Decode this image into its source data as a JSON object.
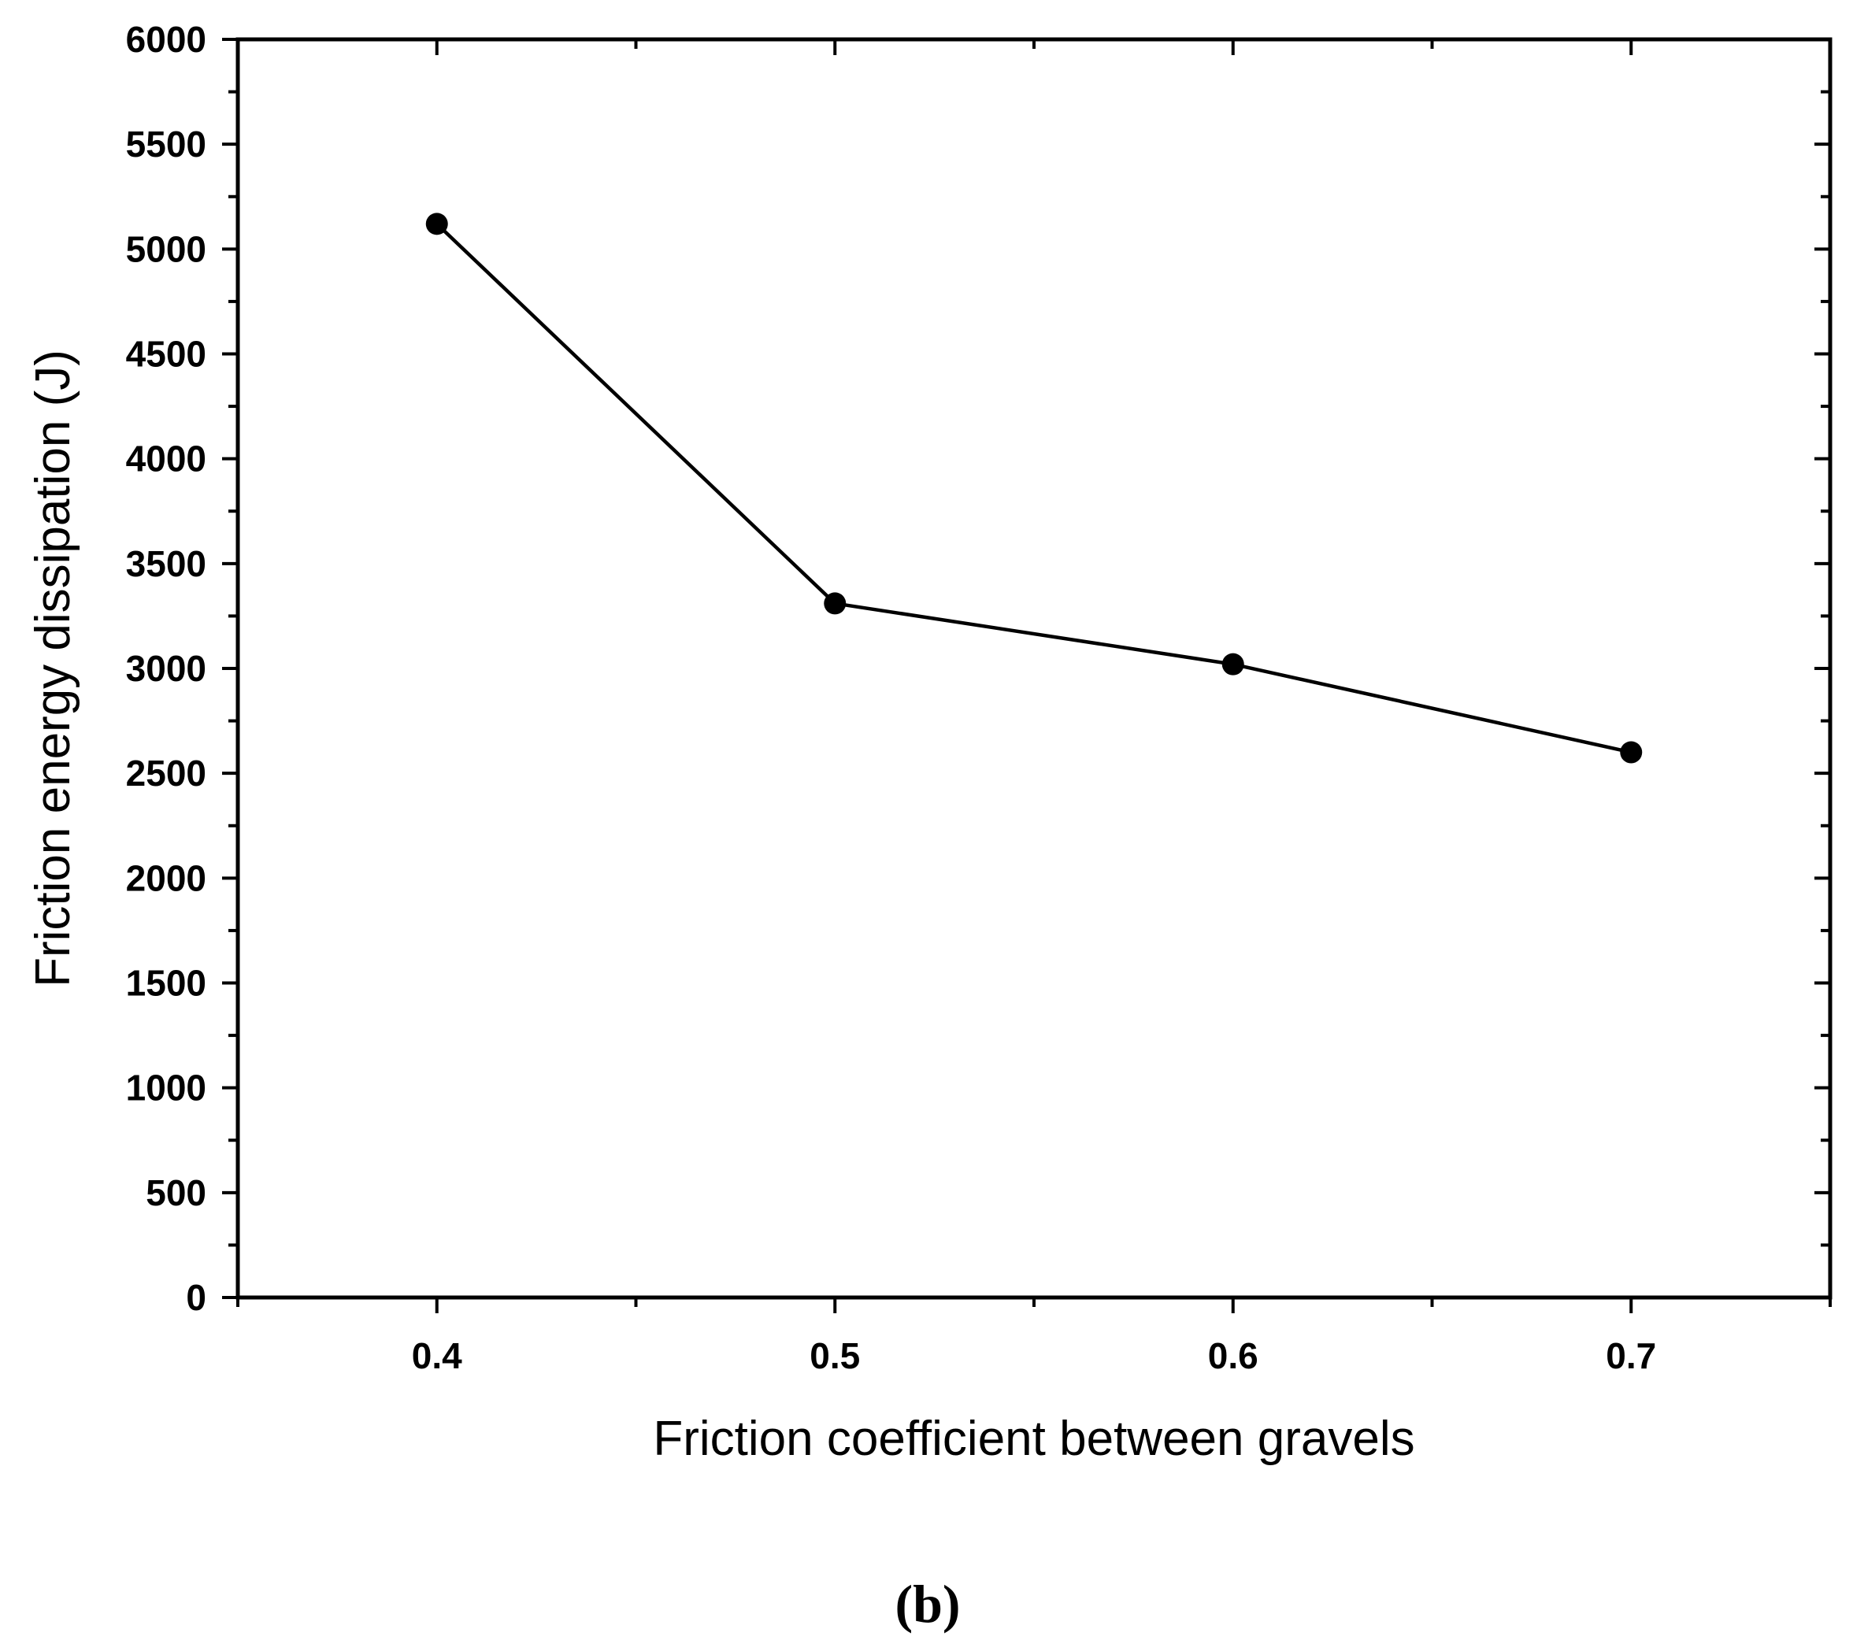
{
  "chart_data": {
    "type": "line",
    "xlabel": "Friction coefficient between gravels",
    "ylabel": "Friction energy dissipation (J)",
    "panel_label": "(b)",
    "xlim": [
      0.35,
      0.75
    ],
    "ylim": [
      0,
      6000
    ],
    "x_ticks": [
      "0.4",
      "0.5",
      "0.6",
      "0.7"
    ],
    "x_tick_values": [
      0.4,
      0.5,
      0.6,
      0.7
    ],
    "y_ticks": [
      "0",
      "500",
      "1000",
      "1500",
      "2000",
      "2500",
      "3000",
      "3500",
      "4000",
      "4500",
      "5000",
      "5500",
      "6000"
    ],
    "y_tick_values": [
      0,
      500,
      1000,
      1500,
      2000,
      2500,
      3000,
      3500,
      4000,
      4500,
      5000,
      5500,
      6000
    ],
    "x": [
      0.4,
      0.5,
      0.6,
      0.7
    ],
    "series": [
      {
        "values": [
          5120,
          3310,
          3020,
          2600
        ],
        "color": "#000000",
        "marker": "circle"
      }
    ],
    "grid": false,
    "legend": "none"
  }
}
